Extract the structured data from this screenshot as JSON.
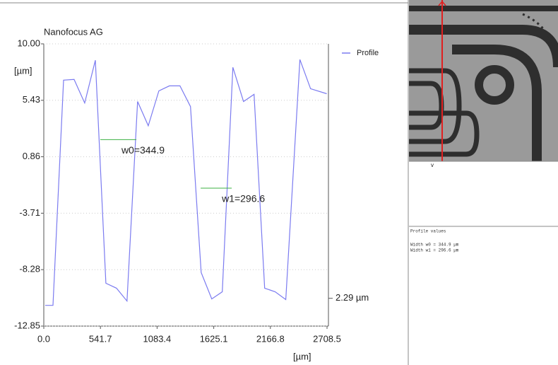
{
  "chart_data": {
    "type": "line",
    "title": "Nanofocus AG",
    "y_label": "[µm]",
    "x_label": "[µm]",
    "x": [
      13.5,
      88,
      189,
      290,
      391,
      493,
      594,
      695,
      796,
      897,
      999,
      1100,
      1201,
      1302,
      1403,
      1505,
      1606,
      1707,
      1808,
      1910,
      2011,
      2112,
      2213,
      2314,
      2449,
      2551,
      2706
    ],
    "series": [
      {
        "name": "Profile",
        "color": "#7b7bf0",
        "values": [
          -11.17,
          -11.17,
          7.06,
          7.12,
          5.21,
          8.67,
          -9.38,
          -9.78,
          -10.82,
          5.33,
          3.37,
          6.19,
          6.6,
          6.6,
          4.92,
          -8.51,
          -10.65,
          -10.07,
          8.1,
          5.33,
          5.91,
          -9.78,
          -10.07,
          -10.7,
          8.73,
          6.37,
          5.96
        ]
      }
    ],
    "xlim": [
      0,
      2708.5
    ],
    "ylim": [
      -12.85,
      10
    ],
    "xticks": [
      {
        "value": 0,
        "label": "0.0"
      },
      541.7,
      1083.4,
      1625.1,
      2166.8,
      2708.5
    ],
    "yticks": [
      {
        "value": 10,
        "label": "10.00"
      },
      5.43,
      0.86,
      -3.71,
      -8.28,
      -12.85
    ],
    "grid": true,
    "annotations": [
      {
        "text": "w0=344.9",
        "x": [
          540,
          885
        ],
        "y": 2.25,
        "color": "#3cb043"
      },
      {
        "text": "w1=296.6",
        "x": [
          1500,
          1797
        ],
        "y": -1.68,
        "color": "#3cb043"
      }
    ],
    "marker": {
      "text": "2.29 µm",
      "y": -10.6
    }
  },
  "panel": {
    "title": "Profile values",
    "lines": [
      "Width w0      = 344.9 µm",
      "Width w1      = 296.6 µm"
    ]
  }
}
